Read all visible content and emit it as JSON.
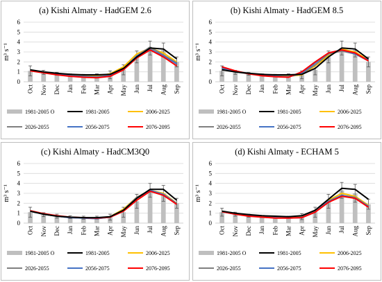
{
  "colors": {
    "observed_bar": "#bfbfbf",
    "grid": "#d9d9d9",
    "axis": "#bfbfbf"
  },
  "chart_data": [
    {
      "type": "line",
      "title": "(a) Kishi Almaty - HadGEM 2.6",
      "ylabel": "m³ s⁻¹",
      "ylim": [
        0,
        6
      ],
      "yticks": [
        0,
        1,
        2,
        3,
        4,
        5,
        6
      ],
      "categories": [
        "Oct",
        "Nov",
        "Dec",
        "Jan",
        "Feb",
        "Mar",
        "Apr",
        "May",
        "Jun",
        "Jul",
        "Aug",
        "Sep"
      ],
      "bars": {
        "name": "1981-2005 O",
        "color": "#bfbfbf",
        "values": [
          1.1,
          0.95,
          0.8,
          0.7,
          0.65,
          0.65,
          0.7,
          1.2,
          2.5,
          3.4,
          3.2,
          2.0
        ],
        "errors": [
          0.5,
          0.2,
          0.15,
          0.1,
          0.1,
          0.15,
          0.4,
          0.5,
          0.6,
          0.7,
          0.7,
          0.5
        ]
      },
      "series": [
        {
          "name": "1981-2005",
          "color": "#000000",
          "values": [
            1.2,
            1.0,
            0.85,
            0.75,
            0.7,
            0.7,
            0.75,
            1.35,
            2.5,
            3.4,
            3.3,
            2.3
          ]
        },
        {
          "name": "2006-2025",
          "color": "#ffc000",
          "values": [
            1.15,
            0.95,
            0.8,
            0.65,
            0.6,
            0.55,
            0.8,
            1.5,
            2.8,
            3.4,
            2.9,
            2.0
          ]
        },
        {
          "name": "2026-2055",
          "color": "#7f7f7f",
          "values": [
            1.15,
            0.95,
            0.75,
            0.6,
            0.55,
            0.5,
            0.65,
            1.3,
            2.6,
            3.5,
            2.7,
            1.9
          ]
        },
        {
          "name": "2056-2075",
          "color": "#4472c4",
          "values": [
            1.15,
            0.95,
            0.75,
            0.6,
            0.5,
            0.45,
            0.6,
            1.3,
            2.6,
            3.3,
            2.6,
            1.8
          ]
        },
        {
          "name": "2076-2095",
          "color": "#ff0000",
          "values": [
            1.1,
            0.9,
            0.7,
            0.55,
            0.45,
            0.4,
            0.55,
            1.2,
            2.4,
            3.2,
            2.5,
            1.6
          ]
        }
      ]
    },
    {
      "type": "line",
      "title": "(b) Kishi Almaty - HadGEM 8.5",
      "ylabel": "m³ s⁻¹",
      "ylim": [
        0,
        6
      ],
      "yticks": [
        0,
        1,
        2,
        3,
        4,
        5,
        6
      ],
      "categories": [
        "Oct",
        "Nov",
        "Dec",
        "Jan",
        "Feb",
        "Mar",
        "Apr",
        "May",
        "Jun",
        "Jul",
        "Aug",
        "Sep"
      ],
      "bars": {
        "name": "1981-2005 O",
        "color": "#bfbfbf",
        "values": [
          1.1,
          0.95,
          0.8,
          0.7,
          0.65,
          0.65,
          0.7,
          1.2,
          2.5,
          3.4,
          3.2,
          2.0
        ],
        "errors": [
          0.5,
          0.2,
          0.15,
          0.1,
          0.1,
          0.15,
          0.4,
          0.5,
          0.6,
          0.7,
          0.7,
          0.5
        ]
      },
      "series": [
        {
          "name": "1981-2005",
          "color": "#000000",
          "values": [
            1.2,
            1.0,
            0.85,
            0.75,
            0.7,
            0.7,
            0.75,
            1.35,
            2.5,
            3.4,
            3.3,
            2.3
          ]
        },
        {
          "name": "2006-2025",
          "color": "#ffc000",
          "values": [
            1.3,
            1.05,
            0.85,
            0.7,
            0.6,
            0.55,
            0.7,
            1.6,
            2.6,
            3.3,
            3.0,
            2.2
          ]
        },
        {
          "name": "2026-2055",
          "color": "#7f7f7f",
          "values": [
            1.3,
            1.0,
            0.8,
            0.65,
            0.55,
            0.5,
            0.8,
            1.7,
            2.8,
            3.1,
            2.8,
            2.1
          ]
        },
        {
          "name": "2056-2075",
          "color": "#4472c4",
          "values": [
            1.4,
            1.05,
            0.85,
            0.65,
            0.55,
            0.5,
            0.9,
            1.9,
            2.9,
            3.2,
            2.8,
            2.2
          ]
        },
        {
          "name": "2076-2095",
          "color": "#ff0000",
          "values": [
            1.5,
            1.1,
            0.8,
            0.6,
            0.5,
            0.45,
            1.0,
            2.0,
            2.9,
            3.2,
            2.9,
            2.1
          ]
        }
      ]
    },
    {
      "type": "line",
      "title": "(c) Kishi Almaty - HadCM3Q0",
      "ylabel": "m³ s⁻¹",
      "ylim": [
        0,
        6
      ],
      "yticks": [
        0,
        1,
        2,
        3,
        4,
        5,
        6
      ],
      "categories": [
        "Oct",
        "Nov",
        "Dec",
        "Jan",
        "Feb",
        "Mar",
        "Apr",
        "May",
        "Jun",
        "Jul",
        "Aug",
        "Sep"
      ],
      "bars": {
        "name": "1981-2005 O",
        "color": "#bfbfbf",
        "values": [
          1.1,
          0.85,
          0.7,
          0.6,
          0.55,
          0.55,
          0.6,
          1.1,
          2.2,
          3.3,
          3.0,
          2.0
        ],
        "errors": [
          0.5,
          0.2,
          0.2,
          0.15,
          0.15,
          0.15,
          0.3,
          0.5,
          0.7,
          0.7,
          0.8,
          0.5
        ]
      },
      "series": [
        {
          "name": "1981-2005",
          "color": "#000000",
          "values": [
            1.2,
            0.9,
            0.7,
            0.6,
            0.55,
            0.55,
            0.65,
            1.3,
            2.5,
            3.4,
            3.4,
            2.3
          ]
        },
        {
          "name": "2006-2025",
          "color": "#ffc000",
          "values": [
            1.2,
            0.9,
            0.7,
            0.55,
            0.5,
            0.5,
            0.65,
            1.4,
            2.6,
            3.3,
            3.0,
            2.0
          ]
        },
        {
          "name": "2026-2055",
          "color": "#7f7f7f",
          "values": [
            1.2,
            0.9,
            0.7,
            0.55,
            0.5,
            0.45,
            0.6,
            1.3,
            2.6,
            3.3,
            2.9,
            2.0
          ]
        },
        {
          "name": "2056-2075",
          "color": "#4472c4",
          "values": [
            1.2,
            0.9,
            0.7,
            0.55,
            0.5,
            0.45,
            0.6,
            1.3,
            2.5,
            3.3,
            2.9,
            1.9
          ]
        },
        {
          "name": "2076-2095",
          "color": "#ff0000",
          "values": [
            1.25,
            0.95,
            0.75,
            0.6,
            0.55,
            0.5,
            0.6,
            1.2,
            2.3,
            3.2,
            2.8,
            1.9
          ]
        }
      ]
    },
    {
      "type": "line",
      "title": "(d) Kishi Almaty - ECHAM 5",
      "ylabel": "m³ s⁻¹",
      "ylim": [
        0,
        6
      ],
      "yticks": [
        0,
        1,
        2,
        3,
        4,
        5,
        6
      ],
      "categories": [
        "Oct",
        "Nov",
        "Dec",
        "Jan",
        "Feb",
        "Mar",
        "Apr",
        "May",
        "Jun",
        "Jul",
        "Aug",
        "Sep"
      ],
      "bars": {
        "name": "1981-2005 O",
        "color": "#bfbfbf",
        "values": [
          1.1,
          0.9,
          0.75,
          0.65,
          0.6,
          0.6,
          0.65,
          1.1,
          2.2,
          3.3,
          3.0,
          1.9
        ],
        "errors": [
          0.4,
          0.2,
          0.15,
          0.1,
          0.1,
          0.1,
          0.3,
          0.5,
          0.7,
          0.8,
          0.9,
          0.5
        ]
      },
      "series": [
        {
          "name": "1981-2005",
          "color": "#000000",
          "values": [
            1.2,
            1.0,
            0.85,
            0.75,
            0.7,
            0.65,
            0.75,
            1.3,
            2.4,
            3.5,
            3.4,
            2.4
          ]
        },
        {
          "name": "2006-2025",
          "color": "#ffc000",
          "values": [
            1.2,
            0.95,
            0.8,
            0.65,
            0.6,
            0.55,
            0.65,
            1.2,
            2.3,
            3.0,
            2.7,
            1.8
          ]
        },
        {
          "name": "2026-2055",
          "color": "#7f7f7f",
          "values": [
            1.2,
            0.95,
            0.75,
            0.6,
            0.55,
            0.5,
            0.6,
            1.2,
            2.2,
            2.8,
            2.6,
            1.7
          ]
        },
        {
          "name": "2056-2075",
          "color": "#4472c4",
          "values": [
            1.15,
            0.9,
            0.75,
            0.6,
            0.55,
            0.5,
            0.55,
            1.1,
            2.2,
            2.8,
            2.5,
            1.7
          ]
        },
        {
          "name": "2076-2095",
          "color": "#ff0000",
          "values": [
            1.15,
            0.9,
            0.7,
            0.6,
            0.5,
            0.5,
            0.55,
            1.1,
            2.1,
            2.7,
            2.5,
            1.6
          ]
        }
      ]
    }
  ]
}
